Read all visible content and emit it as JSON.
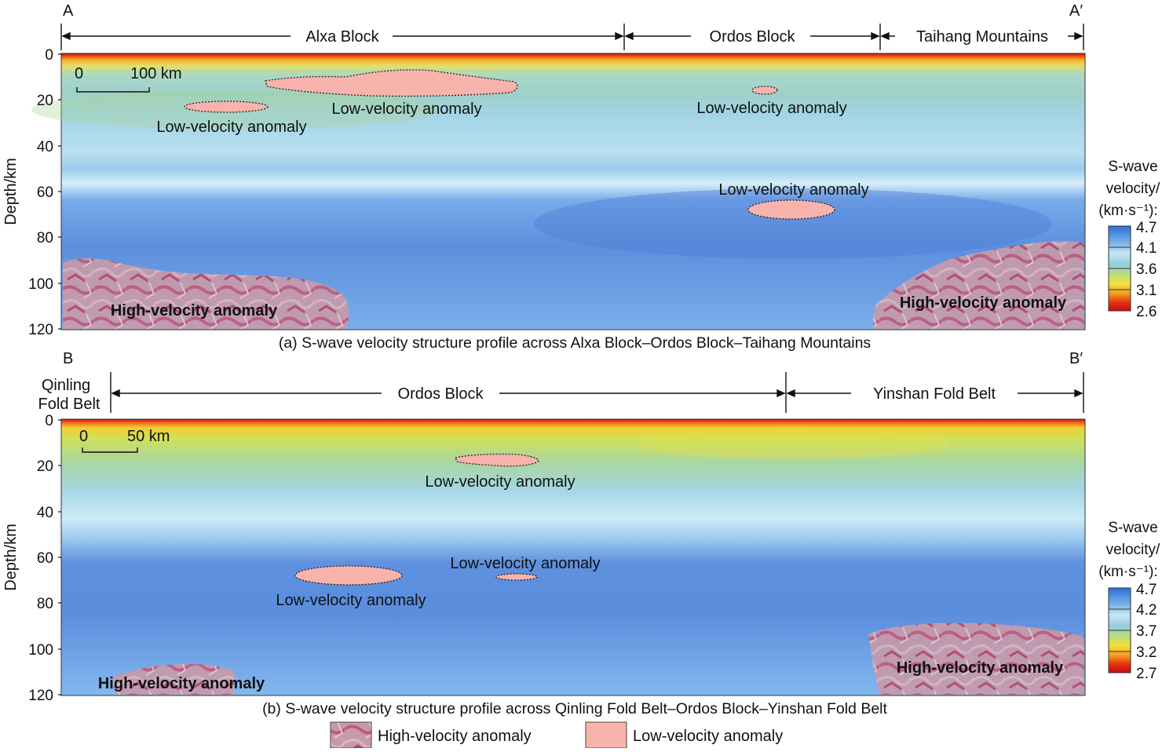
{
  "colors": {
    "colorbar": [
      "#2f6fdb",
      "#7ab3e8",
      "#c8e6f2",
      "#8fcfe0",
      "#bfdc74",
      "#f2e23a",
      "#f39a1c",
      "#e33214",
      "#c60c0c"
    ],
    "low_velocity_fill": "#f7b3ac",
    "high_velocity_fill": "#c07a92",
    "background_mantle": "#5f93e0"
  },
  "panel_a": {
    "start_label": "A",
    "end_label": "A′",
    "segments": [
      "Alxa Block",
      "Ordos Block",
      "Taihang Mountains"
    ],
    "y_axis_label": "Depth/km",
    "y_ticks": [
      "0",
      "20",
      "40",
      "60",
      "80",
      "100",
      "120"
    ],
    "scale_bar": {
      "zero": "0",
      "length_label": "100 km"
    },
    "low_velocity_labels": [
      "Low-velocity anomaly",
      "Low-velocity anomaly",
      "Low-velocity anomaly",
      "Low-velocity anomaly"
    ],
    "high_velocity_labels": [
      "High-velocity anomaly",
      "High-velocity anomaly"
    ],
    "caption": "(a) S-wave velocity structure profile across Alxa Block–Ordos Block–Taihang Mountains",
    "colorbar": {
      "title": [
        "S-wave",
        "velocity/",
        "(km·s⁻¹):"
      ],
      "ticks": [
        "4.7",
        "4.1",
        "3.6",
        "3.1",
        "2.6"
      ]
    }
  },
  "panel_b": {
    "start_label": "B",
    "end_label": "B′",
    "left_region": [
      "Qinling",
      "Fold Belt"
    ],
    "segments": [
      "Ordos Block",
      "Yinshan Fold Belt"
    ],
    "y_axis_label": "Depth/km",
    "y_ticks": [
      "0",
      "20",
      "40",
      "60",
      "80",
      "100",
      "120"
    ],
    "scale_bar": {
      "zero": "0",
      "length_label": "50 km"
    },
    "low_velocity_labels": [
      "Low-velocity anomaly",
      "Low-velocity anomaly",
      "Low-velocity anomaly"
    ],
    "high_velocity_labels": [
      "High-velocity anomaly",
      "High-velocity anomaly"
    ],
    "caption": "(b) S-wave velocity structure profile across Qinling Fold Belt–Ordos Block–Yinshan Fold Belt",
    "colorbar": {
      "title": [
        "S-wave",
        "velocity/",
        "(km·s⁻¹):"
      ],
      "ticks": [
        "4.7",
        "4.2",
        "3.7",
        "3.2",
        "2.7"
      ]
    }
  },
  "legend": {
    "high": "High-velocity anomaly",
    "low": "Low-velocity anomaly"
  }
}
